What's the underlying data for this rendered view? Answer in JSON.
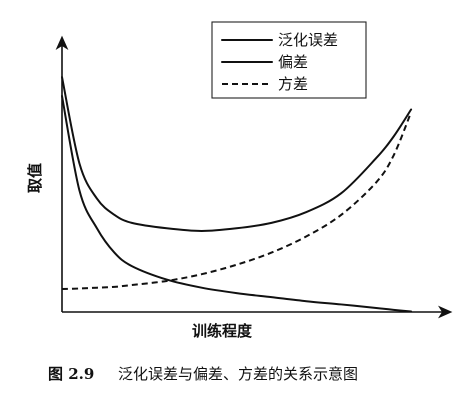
{
  "chart_data": {
    "type": "line",
    "xlabel": "训练程度",
    "ylabel": "取值",
    "x": [
      0.0,
      0.05,
      0.1,
      0.15,
      0.2,
      0.3,
      0.4,
      0.5,
      0.6,
      0.7,
      0.8,
      0.9,
      0.95,
      1.0
    ],
    "series": [
      {
        "name": "泛化误差",
        "style": "solid",
        "values": [
          0.87,
          0.55,
          0.42,
          0.36,
          0.33,
          0.31,
          0.3,
          0.31,
          0.33,
          0.37,
          0.44,
          0.57,
          0.65,
          0.75
        ]
      },
      {
        "name": "偏差",
        "style": "solid",
        "values": [
          0.8,
          0.45,
          0.31,
          0.22,
          0.17,
          0.12,
          0.09,
          0.07,
          0.055,
          0.04,
          0.028,
          0.015,
          0.008,
          0.002
        ]
      },
      {
        "name": "方差",
        "style": "dashed",
        "values": [
          0.085,
          0.087,
          0.09,
          0.093,
          0.1,
          0.115,
          0.14,
          0.175,
          0.22,
          0.28,
          0.36,
          0.48,
          0.58,
          0.74
        ]
      }
    ],
    "xlim": [
      0,
      1.1
    ],
    "ylim": [
      0,
      1
    ],
    "grid": false,
    "legend_position": "top-right"
  },
  "caption": {
    "label": "图 2.9",
    "text": "泛化误差与偏差、方差的关系示意图"
  }
}
